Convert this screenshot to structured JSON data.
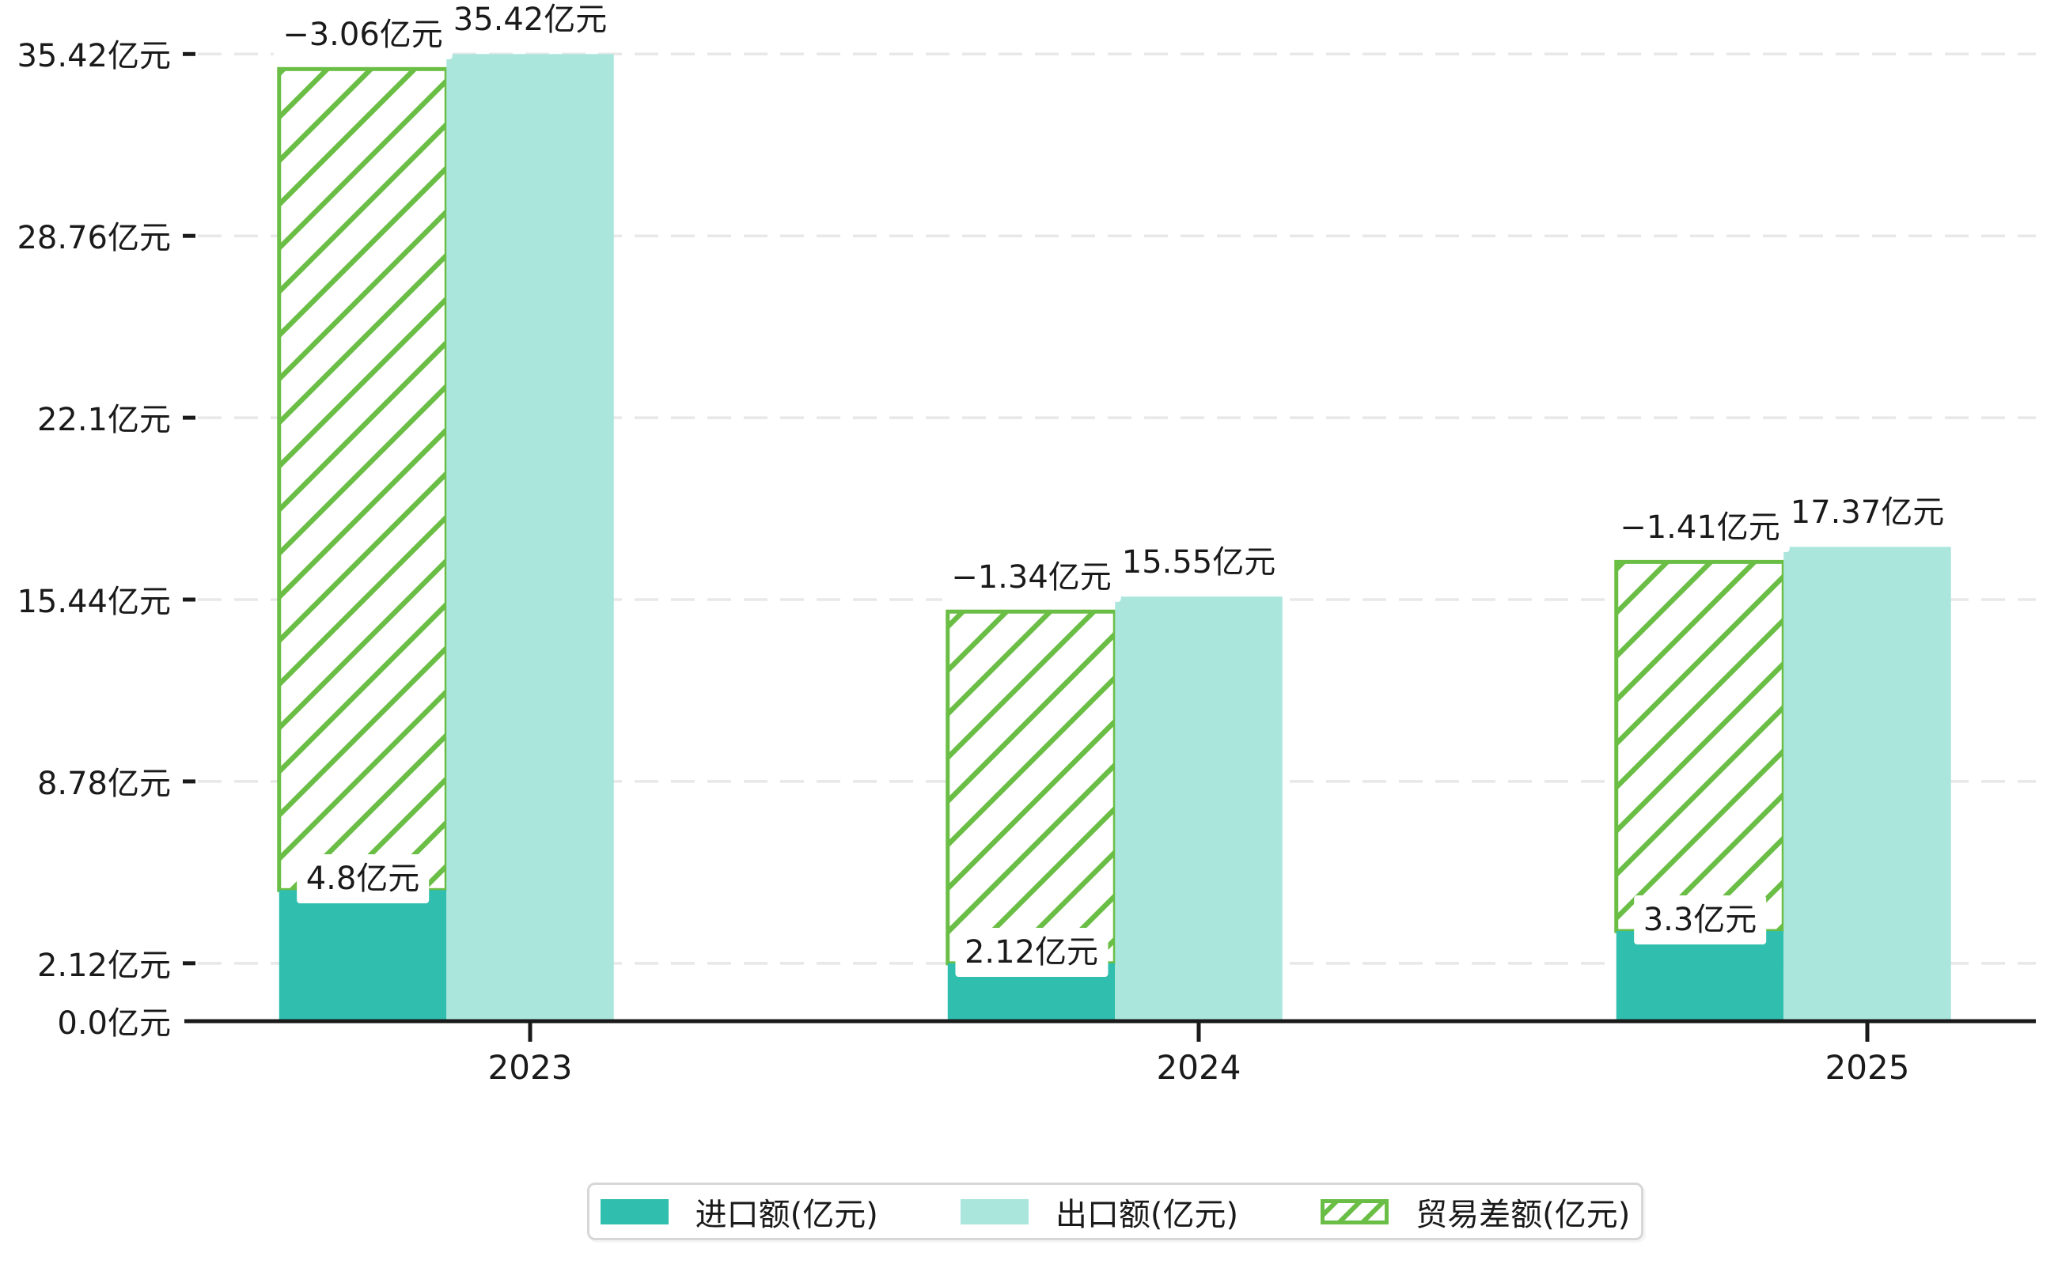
{
  "chart_data": {
    "type": "bar",
    "categories": [
      "2023",
      "2024",
      "2025"
    ],
    "series": [
      {
        "name": "进口额(亿元)",
        "role": "import",
        "values": [
          4.8,
          2.12,
          3.3
        ],
        "bar_labels": [
          "4.8亿元",
          "2.12亿元",
          "3.3亿元"
        ],
        "color": "#30bfae",
        "pattern": "solid"
      },
      {
        "name": "出口额(亿元)",
        "role": "export",
        "values": [
          35.42,
          15.55,
          17.37
        ],
        "bar_labels": [
          "35.42亿元",
          "15.55亿元",
          "17.37亿元"
        ],
        "color": "#abe6dd",
        "pattern": "solid"
      },
      {
        "name": "贸易差额(亿元)",
        "role": "trade-balance",
        "values": [
          -3.06,
          -1.34,
          -1.41
        ],
        "bar_labels": [
          "−3.06亿元",
          "−1.34亿元",
          "−1.41亿元"
        ],
        "color": "#6abe45",
        "pattern": "diagonal-hatch",
        "note": "hatched bar drawn over import bar position, spanning from import bar top up to just below export bar top"
      }
    ],
    "y_axis": {
      "tick_values": [
        0,
        2.12,
        8.78,
        15.44,
        22.1,
        28.76,
        35.42
      ],
      "tick_labels": [
        "0.0亿元",
        "2.12亿元",
        "8.78亿元",
        "15.44亿元",
        "22.1亿元",
        "28.76亿元",
        "35.42亿元"
      ],
      "range": [
        0,
        36.8
      ]
    },
    "x_axis": {
      "tick_labels": [
        "2023",
        "2024",
        "2025"
      ]
    },
    "title": "",
    "xlabel": "",
    "ylabel": "",
    "grid": "horizontal-dashed",
    "legend_position": "bottom-center",
    "unit": "亿元"
  },
  "colors": {
    "import": "#30bfae",
    "export": "#abe6dd",
    "trade_hatch": "#6abe45",
    "axis": "#1a1a1a",
    "grid": "#e8e8e8",
    "text": "#1a1a1a",
    "legend_border": "#d7d7d7",
    "background": "#ffffff"
  }
}
